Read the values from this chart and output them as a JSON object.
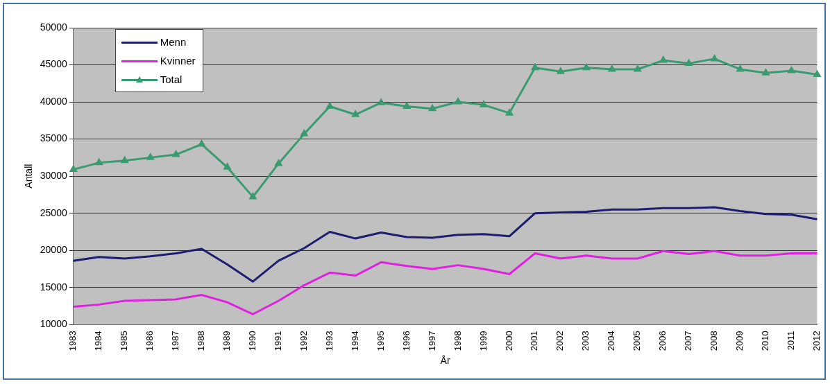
{
  "chart_data": {
    "type": "line",
    "xlabel": "År",
    "ylabel": "Antall",
    "categories": [
      "1983",
      "1984",
      "1985",
      "1986",
      "1987",
      "1988",
      "1989",
      "1990",
      "1991",
      "1992",
      "1993",
      "1994",
      "1995",
      "1996",
      "1997",
      "1998",
      "1999",
      "2000",
      "2001",
      "2002",
      "2003",
      "2004",
      "2005",
      "2006",
      "2007",
      "2008",
      "2009",
      "2010",
      "2011",
      "2012"
    ],
    "series": [
      {
        "name": "Menn",
        "color": "#1c1c70",
        "marker": "none",
        "values": [
          18600,
          19100,
          18900,
          19200,
          19600,
          20200,
          18100,
          15800,
          18600,
          20300,
          22500,
          21600,
          22400,
          21800,
          21700,
          22100,
          22200,
          21900,
          25000,
          25100,
          25200,
          25500,
          25500,
          25700,
          25700,
          25800,
          25300,
          24900,
          24800,
          24200
        ]
      },
      {
        "name": "Kvinner",
        "color": "#e020e0",
        "marker": "none",
        "values": [
          12400,
          12700,
          13200,
          13300,
          13400,
          14000,
          13000,
          11400,
          13200,
          15300,
          17000,
          16600,
          18400,
          17900,
          17500,
          18000,
          17500,
          16800,
          19600,
          18900,
          19300,
          18900,
          18900,
          19900,
          19500,
          19900,
          19300,
          19300,
          19600,
          19600
        ]
      },
      {
        "name": "Total",
        "color": "#3a9a70",
        "marker": "triangle",
        "values": [
          30900,
          31800,
          32100,
          32500,
          32900,
          34300,
          31200,
          27200,
          31700,
          35700,
          39400,
          38300,
          39900,
          39400,
          39100,
          40000,
          39600,
          38500,
          44600,
          44100,
          44600,
          44400,
          44400,
          45600,
          45200,
          45800,
          44400,
          43900,
          44200,
          43700
        ]
      }
    ],
    "ylim": [
      10000,
      50000
    ],
    "yticks": [
      10000,
      15000,
      20000,
      25000,
      30000,
      35000,
      40000,
      45000,
      50000
    ],
    "grid": "y",
    "legend": "top left"
  }
}
